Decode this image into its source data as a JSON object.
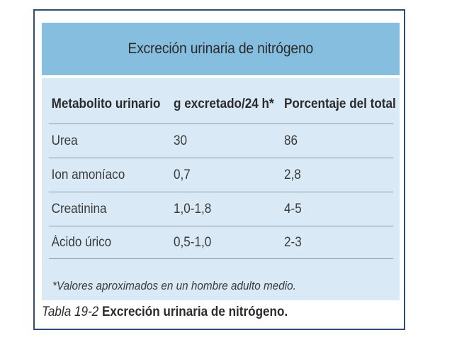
{
  "table": {
    "title": "Excreción urinaria de nitrógeno",
    "headers": [
      "Metabolito urinario",
      "g excretado/24 h*",
      "Porcentaje del total"
    ],
    "rows": [
      [
        "Urea",
        "30",
        "86"
      ],
      [
        "Ion amoníaco",
        "0,7",
        "2,8"
      ],
      [
        "Creatinina",
        "1,0-1,8",
        "4-5"
      ],
      [
        "Ácido úrico",
        "0,5-1,0",
        "2-3"
      ]
    ],
    "footnote": "*Valores aproximados en un hombre adulto medio."
  },
  "caption": {
    "number": "Tabla 19-2",
    "text": "Excreción urinaria de nitrógeno."
  },
  "colors": {
    "title_band": "#86bedf",
    "table_background": "#d9eaf6",
    "frame_border": "#2f4d74"
  }
}
